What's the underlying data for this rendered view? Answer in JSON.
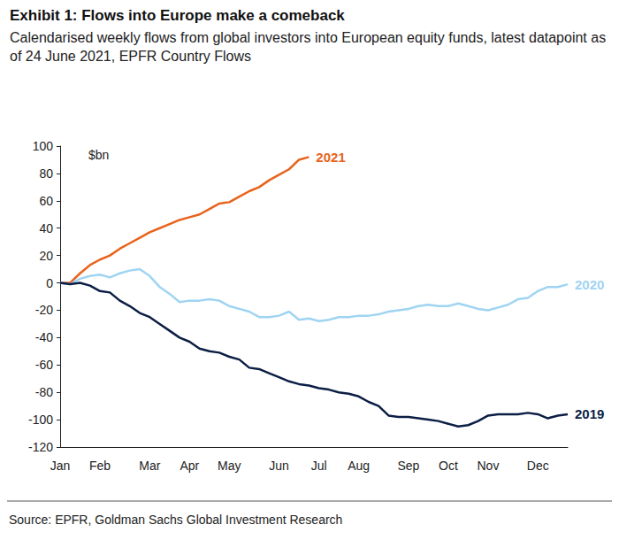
{
  "chart_data": {
    "type": "line",
    "title": "Exhibit 1: Flows into Europe make a comeback",
    "subtitle": "Calendarised weekly flows from global investors into European equity funds, latest datapoint as of 24 June 2021, EPFR Country Flows",
    "source": "Source: EPFR, Goldman Sachs Global Investment Research",
    "annotations": [
      {
        "text": "$bn"
      }
    ],
    "categories": [
      "Jan",
      null,
      null,
      null,
      "Feb",
      null,
      null,
      null,
      null,
      "Mar",
      null,
      null,
      null,
      "Apr",
      null,
      null,
      null,
      "May",
      null,
      null,
      null,
      null,
      "Jun",
      null,
      null,
      null,
      "Jul",
      null,
      null,
      null,
      "Aug",
      null,
      null,
      null,
      null,
      "Sep",
      null,
      null,
      null,
      "Oct",
      null,
      null,
      null,
      "Nov",
      null,
      null,
      null,
      null,
      "Dec",
      null,
      null,
      null
    ],
    "series": [
      {
        "name": "2021",
        "color": "#e8631c",
        "values": [
          0,
          0,
          7,
          13,
          17,
          20,
          25,
          29,
          33,
          37,
          40,
          43,
          46,
          48,
          50,
          54,
          58,
          59,
          63,
          67,
          70,
          75,
          79,
          83,
          90,
          92,
          null,
          null,
          null,
          null,
          null,
          null,
          null,
          null,
          null,
          null,
          null,
          null,
          null,
          null,
          null,
          null,
          null,
          null,
          null,
          null,
          null,
          null,
          null,
          null,
          null,
          null
        ]
      },
      {
        "name": "2020",
        "color": "#9fd4f2",
        "values": [
          0,
          -1,
          3,
          5,
          6,
          4,
          7,
          9,
          10,
          5,
          -3,
          -8,
          -14,
          -13,
          -13,
          -12,
          -13,
          -17,
          -19,
          -21,
          -25,
          -25,
          -24,
          -21,
          -27,
          -26,
          -28,
          -27,
          -25,
          -25,
          -24,
          -24,
          -23,
          -21,
          -20,
          -19,
          -17,
          -16,
          -17,
          -17,
          -15,
          -17,
          -19,
          -20,
          -18,
          -16,
          -12,
          -11,
          -6,
          -3,
          -3,
          -1
        ]
      },
      {
        "name": "2019",
        "color": "#0c1e45",
        "values": [
          0,
          -1,
          0,
          -2,
          -6,
          -7,
          -13,
          -17,
          -22,
          -25,
          -30,
          -35,
          -40,
          -43,
          -48,
          -50,
          -51,
          -54,
          -56,
          -62,
          -63,
          -66,
          -69,
          -72,
          -74,
          -75,
          -77,
          -78,
          -80,
          -81,
          -83,
          -87,
          -90,
          -97,
          -98,
          -98,
          -99,
          -100,
          -101,
          -103,
          -105,
          -104,
          -101,
          -97,
          -96,
          -96,
          -96,
          -95,
          -96,
          -99,
          -97,
          -96
        ]
      }
    ],
    "ylim": [
      -120,
      100
    ],
    "yticks": [
      -120,
      -100,
      -80,
      -60,
      -40,
      -20,
      0,
      20,
      40,
      60,
      80,
      100
    ],
    "grid": false
  }
}
